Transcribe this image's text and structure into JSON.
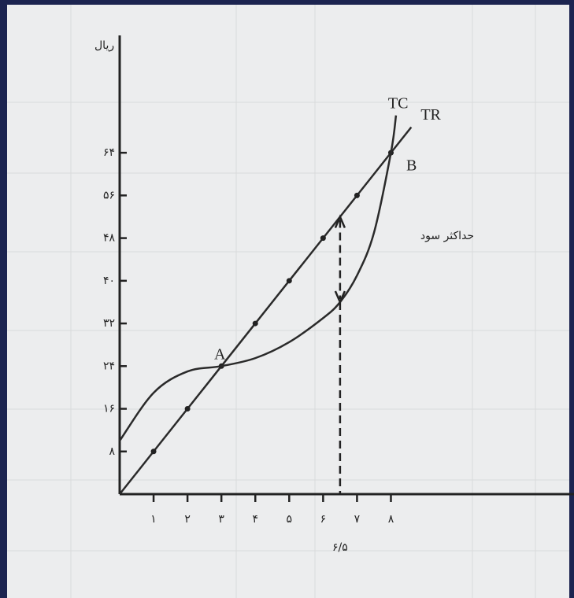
{
  "chart_data": {
    "type": "line",
    "y_label": "ریال",
    "xlim": [
      0,
      13.4
    ],
    "ylim": [
      0,
      86
    ],
    "xticks": [
      {
        "value": 1,
        "label": "۱"
      },
      {
        "value": 2,
        "label": "۲"
      },
      {
        "value": 3,
        "label": "۳"
      },
      {
        "value": 4,
        "label": "۴"
      },
      {
        "value": 5,
        "label": "۵"
      },
      {
        "value": 6,
        "label": "۶"
      },
      {
        "value": 7,
        "label": "۷"
      },
      {
        "value": 8,
        "label": "۸"
      }
    ],
    "yticks": [
      {
        "value": 8,
        "label": "۸"
      },
      {
        "value": 16,
        "label": "۱۶"
      },
      {
        "value": 24,
        "label": "۲۴"
      },
      {
        "value": 32,
        "label": "۳۲"
      },
      {
        "value": 40,
        "label": "۴۰"
      },
      {
        "value": 48,
        "label": "۴۸"
      },
      {
        "value": 56,
        "label": "۵۶"
      },
      {
        "value": 64,
        "label": "۶۴"
      }
    ],
    "series": [
      {
        "name": "TR",
        "color": "#2a2a2a",
        "x": [
          0,
          1,
          2,
          3,
          4,
          5,
          6,
          7,
          8,
          8.6
        ],
        "values": [
          0,
          8,
          16,
          24,
          32,
          40,
          48,
          56,
          64,
          68.8
        ]
      },
      {
        "name": "TC",
        "color": "#2a2a2a",
        "x": [
          0,
          1,
          2,
          3,
          4,
          5,
          6,
          6.5,
          7,
          7.5,
          8,
          8.15
        ],
        "values": [
          10,
          19,
          23,
          24,
          25.5,
          28.5,
          33,
          36,
          41,
          49,
          64,
          71
        ]
      }
    ],
    "points": [
      {
        "label": "A"
      },
      {
        "label": "B"
      }
    ],
    "max_profit": {
      "x": 6.5,
      "label": "۶/۵",
      "text": "حداکثر سود",
      "tr": 52,
      "tc": 36
    }
  }
}
